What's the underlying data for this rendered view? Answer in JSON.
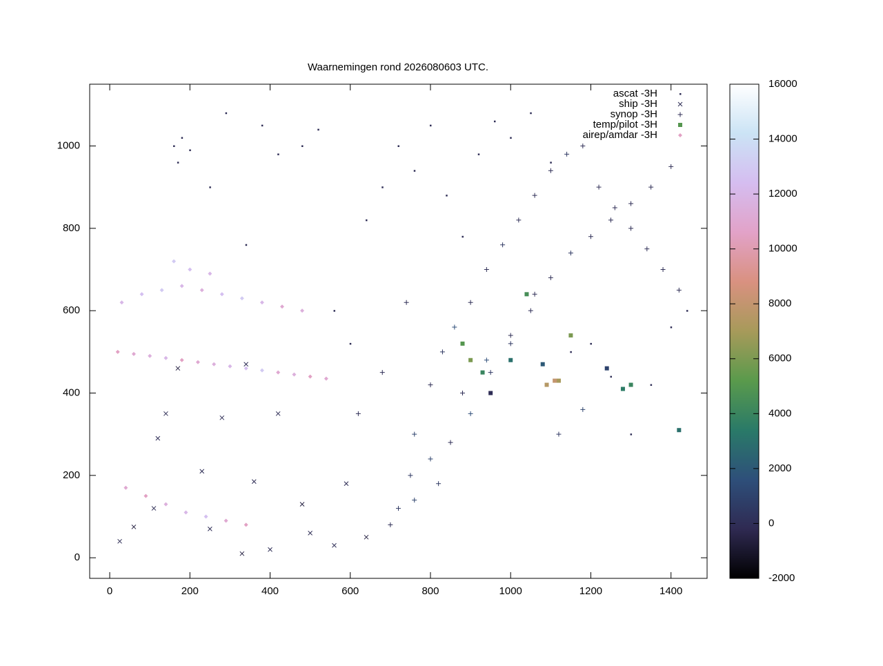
{
  "chart_data": {
    "type": "scatter",
    "title": "Waarnemingen rond 2026080603 UTC.",
    "xlim": [
      -50,
      1490
    ],
    "ylim": [
      -50,
      1150
    ],
    "xticks": [
      0,
      200,
      400,
      600,
      800,
      1000,
      1200,
      1400
    ],
    "yticks": [
      0,
      200,
      400,
      600,
      800,
      1000
    ],
    "clim": [
      -2000,
      16000
    ],
    "cticks": [
      -2000,
      0,
      2000,
      4000,
      6000,
      8000,
      10000,
      12000,
      14000,
      16000
    ],
    "colormap": [
      "#000000",
      "#2f2a52",
      "#2e4f7a",
      "#2a7a68",
      "#5a9a4c",
      "#a79a5a",
      "#d99180",
      "#e2a2c8",
      "#d5bdf0",
      "#cbe3f5",
      "#ffffff"
    ],
    "legend": "top-right",
    "series": [
      {
        "name": "ascat -3H",
        "marker": "dot",
        "x": [
          160,
          170,
          180,
          200,
          250,
          290,
          340,
          380,
          420,
          480,
          520,
          560,
          600,
          640,
          680,
          720,
          760,
          800,
          840,
          880,
          920,
          960,
          1000,
          1050,
          1100,
          1150,
          1200,
          1250,
          1300,
          1350,
          1400,
          1440
        ],
        "y": [
          1000,
          960,
          1020,
          990,
          900,
          1080,
          760,
          1050,
          980,
          1000,
          1040,
          600,
          520,
          820,
          900,
          1000,
          940,
          1050,
          880,
          780,
          980,
          1060,
          1020,
          1080,
          960,
          500,
          520,
          440,
          300,
          420,
          560,
          600
        ],
        "z": [
          0,
          0,
          0,
          0,
          0,
          0,
          0,
          0,
          0,
          0,
          0,
          0,
          0,
          0,
          0,
          0,
          0,
          0,
          0,
          0,
          0,
          0,
          0,
          0,
          0,
          0,
          0,
          0,
          0,
          0,
          0,
          0
        ]
      },
      {
        "name": "ship -3H",
        "marker": "cross",
        "x": [
          25,
          60,
          110,
          140,
          170,
          230,
          280,
          330,
          360,
          400,
          420,
          480,
          500,
          560,
          590,
          640,
          120,
          340,
          250
        ],
        "y": [
          40,
          75,
          120,
          350,
          460,
          210,
          340,
          10,
          185,
          20,
          350,
          130,
          60,
          30,
          180,
          50,
          290,
          470,
          70
        ],
        "z": [
          0,
          -500,
          0,
          0,
          -500,
          0,
          0,
          -500,
          0,
          0,
          0,
          -500,
          0,
          0,
          0,
          -500,
          0,
          0,
          0
        ]
      },
      {
        "name": "synop -3H",
        "marker": "plus",
        "x": [
          700,
          720,
          760,
          800,
          830,
          860,
          900,
          940,
          980,
          1020,
          1060,
          1100,
          1140,
          1180,
          1220,
          1260,
          1300,
          1340,
          1380,
          1420,
          750,
          800,
          850,
          900,
          950,
          1000,
          1050,
          1100,
          1150,
          1200,
          1250,
          1300,
          1350,
          1400,
          760,
          820,
          880,
          940,
          1000,
          1060,
          620,
          680,
          740,
          1120,
          1180
        ],
        "y": [
          80,
          120,
          300,
          420,
          500,
          560,
          620,
          700,
          760,
          820,
          880,
          940,
          980,
          1000,
          900,
          850,
          800,
          750,
          700,
          650,
          200,
          240,
          280,
          350,
          450,
          540,
          600,
          680,
          740,
          780,
          820,
          860,
          900,
          950,
          140,
          180,
          400,
          480,
          520,
          640,
          350,
          450,
          620,
          300,
          360
        ],
        "z": [
          0,
          500,
          1000,
          0,
          500,
          1500,
          0,
          0,
          500,
          0,
          0,
          0,
          500,
          0,
          0,
          0,
          0,
          0,
          0,
          0,
          500,
          1000,
          0,
          1500,
          500,
          0,
          0,
          0,
          500,
          0,
          0,
          0,
          0,
          0,
          1000,
          500,
          0,
          1500,
          500,
          0,
          0,
          0,
          0,
          500,
          1000
        ]
      },
      {
        "name": "temp/pilot -3H",
        "marker": "square",
        "x": [
          880,
          900,
          930,
          950,
          1000,
          1040,
          1080,
          1120,
          1150,
          1240,
          1280,
          1300,
          1420,
          1090,
          1110
        ],
        "y": [
          520,
          480,
          450,
          400,
          480,
          640,
          470,
          430,
          540,
          460,
          410,
          420,
          310,
          420,
          430
        ],
        "z": [
          5000,
          6000,
          4000,
          0,
          3000,
          4500,
          2000,
          7000,
          6000,
          1000,
          3500,
          4000,
          3000,
          7500,
          8000
        ]
      },
      {
        "name": "airep/amdar -3H",
        "marker": "diamond",
        "x": [
          20,
          60,
          100,
          140,
          180,
          220,
          260,
          300,
          340,
          380,
          420,
          460,
          500,
          540,
          30,
          80,
          130,
          180,
          230,
          280,
          330,
          380,
          430,
          480,
          40,
          90,
          140,
          190,
          240,
          290,
          340,
          160,
          200,
          250
        ],
        "y": [
          500,
          495,
          490,
          485,
          480,
          475,
          470,
          465,
          460,
          455,
          450,
          445,
          440,
          435,
          620,
          640,
          650,
          660,
          650,
          640,
          630,
          620,
          610,
          600,
          170,
          150,
          130,
          110,
          100,
          90,
          80,
          720,
          700,
          690
        ],
        "z": [
          10500,
          11000,
          11500,
          12000,
          10500,
          11000,
          11500,
          12000,
          12500,
          13000,
          11000,
          11500,
          10500,
          11000,
          12000,
          12500,
          13000,
          12000,
          11500,
          12500,
          13000,
          12000,
          11000,
          11500,
          11000,
          10500,
          11500,
          12000,
          12500,
          11000,
          10500,
          13000,
          12500,
          12000
        ]
      }
    ]
  }
}
